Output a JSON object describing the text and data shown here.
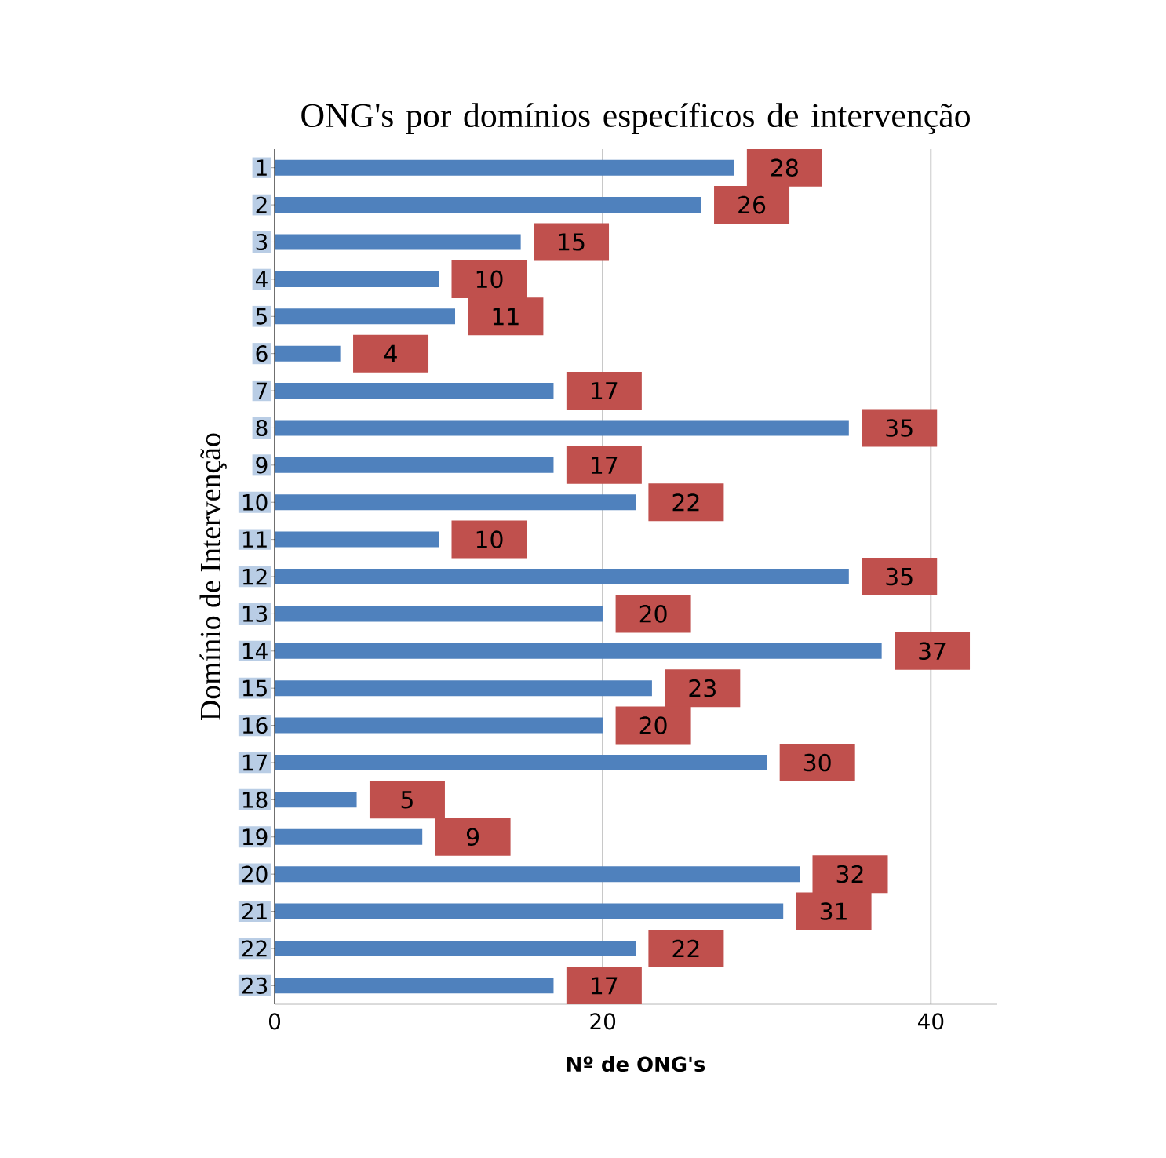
{
  "chart_data": {
    "type": "bar",
    "orientation": "horizontal",
    "title": "ONG's por domínios específicos de intervenção",
    "xlabel": "Nº de ONG's",
    "ylabel": "Domínio de Intervenção",
    "categories": [
      "1",
      "2",
      "3",
      "4",
      "5",
      "6",
      "7",
      "8",
      "9",
      "10",
      "11",
      "12",
      "13",
      "14",
      "15",
      "16",
      "17",
      "18",
      "19",
      "20",
      "21",
      "22",
      "23"
    ],
    "values": [
      28,
      26,
      15,
      10,
      11,
      4,
      17,
      35,
      17,
      22,
      10,
      35,
      20,
      37,
      23,
      20,
      30,
      5,
      9,
      32,
      31,
      22,
      17
    ],
    "color": "#4f81bd",
    "xlim": [
      0,
      44
    ],
    "xticks": [
      0,
      20,
      40
    ],
    "grid": "x",
    "data_labels": true
  }
}
